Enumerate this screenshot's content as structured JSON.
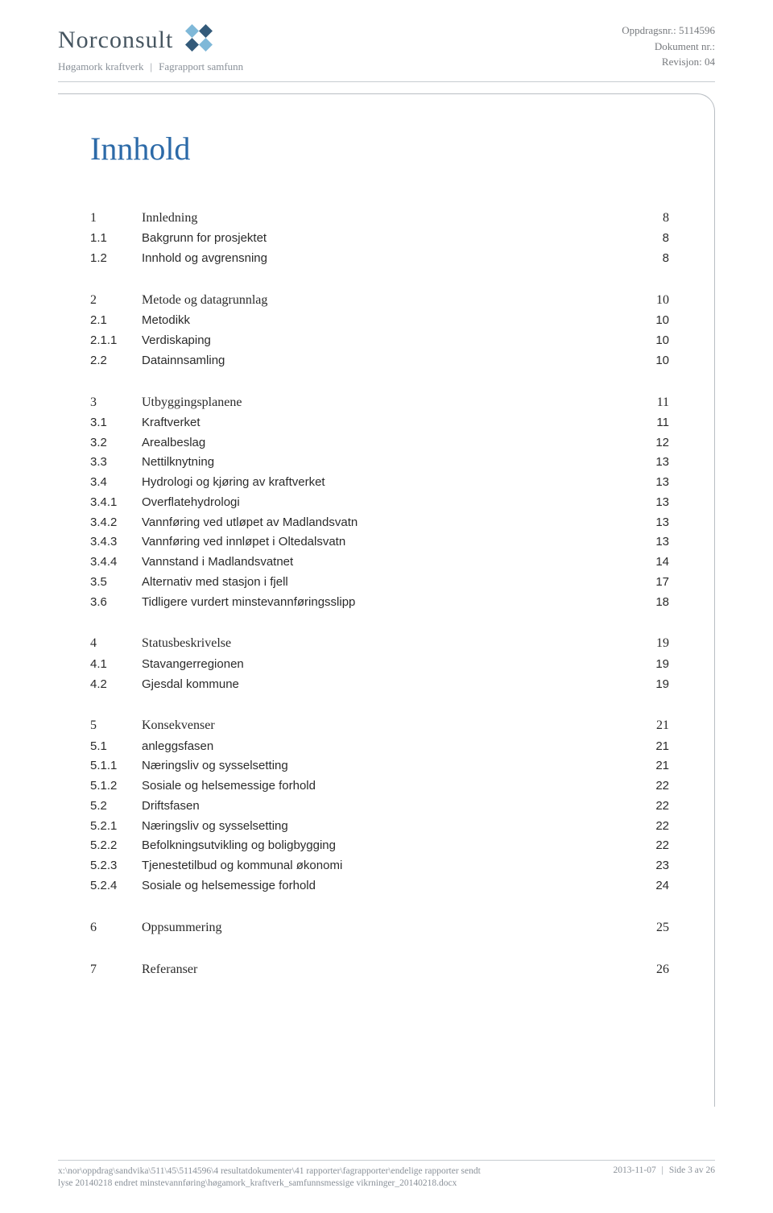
{
  "header": {
    "logo_text": "Norconsult",
    "logo_colors": {
      "dark": "#335a7a",
      "light": "#7fb8d8"
    },
    "sub_left": "Høgamork kraftverk",
    "sub_right": "Fagrapport samfunn",
    "meta": {
      "line1_label": "Oppdragsnr.:",
      "line1_value": "5114596",
      "line2_label": "Dokument nr.:",
      "line2_value": "",
      "line3_label": "Revisjon:",
      "line3_value": "04"
    }
  },
  "title": "Innhold",
  "toc": [
    {
      "entries": [
        {
          "level": 1,
          "num": "1",
          "label": "Innledning",
          "page": "8"
        },
        {
          "level": 2,
          "num": "1.1",
          "label": "Bakgrunn for prosjektet",
          "page": "8"
        },
        {
          "level": 2,
          "num": "1.2",
          "label": "Innhold og avgrensning",
          "page": "8"
        }
      ]
    },
    {
      "entries": [
        {
          "level": 1,
          "num": "2",
          "label": "Metode og datagrunnlag",
          "page": "10"
        },
        {
          "level": 2,
          "num": "2.1",
          "label": "Metodikk",
          "page": "10"
        },
        {
          "level": 3,
          "num": "2.1.1",
          "label": "Verdiskaping",
          "page": "10"
        },
        {
          "level": 2,
          "num": "2.2",
          "label": "Datainnsamling",
          "page": "10"
        }
      ]
    },
    {
      "entries": [
        {
          "level": 1,
          "num": "3",
          "label": "Utbyggingsplanene",
          "page": "11"
        },
        {
          "level": 2,
          "num": "3.1",
          "label": "Kraftverket",
          "page": "11"
        },
        {
          "level": 2,
          "num": "3.2",
          "label": "Arealbeslag",
          "page": "12"
        },
        {
          "level": 2,
          "num": "3.3",
          "label": "Nettilknytning",
          "page": "13"
        },
        {
          "level": 2,
          "num": "3.4",
          "label": "Hydrologi og kjøring av kraftverket",
          "page": "13"
        },
        {
          "level": 3,
          "num": "3.4.1",
          "label": "Overflatehydrologi",
          "page": "13"
        },
        {
          "level": 3,
          "num": "3.4.2",
          "label": "Vannføring ved utløpet av Madlandsvatn",
          "page": "13"
        },
        {
          "level": 3,
          "num": "3.4.3",
          "label": "Vannføring ved innløpet i Oltedalsvatn",
          "page": "13"
        },
        {
          "level": 3,
          "num": "3.4.4",
          "label": "Vannstand i Madlandsvatnet",
          "page": "14"
        },
        {
          "level": 2,
          "num": "3.5",
          "label": "Alternativ med stasjon i fjell",
          "page": "17"
        },
        {
          "level": 2,
          "num": "3.6",
          "label": "Tidligere vurdert minstevannføringsslipp",
          "page": "18"
        }
      ]
    },
    {
      "entries": [
        {
          "level": 1,
          "num": "4",
          "label": "Statusbeskrivelse",
          "page": "19"
        },
        {
          "level": 2,
          "num": "4.1",
          "label": "Stavangerregionen",
          "page": "19"
        },
        {
          "level": 2,
          "num": "4.2",
          "label": "Gjesdal kommune",
          "page": "19"
        }
      ]
    },
    {
      "entries": [
        {
          "level": 1,
          "num": "5",
          "label": "Konsekvenser",
          "page": "21"
        },
        {
          "level": 2,
          "num": "5.1",
          "label": "anleggsfasen",
          "page": "21"
        },
        {
          "level": 3,
          "num": "5.1.1",
          "label": "Næringsliv og sysselsetting",
          "page": "21"
        },
        {
          "level": 3,
          "num": "5.1.2",
          "label": "Sosiale og helsemessige forhold",
          "page": "22"
        },
        {
          "level": 2,
          "num": "5.2",
          "label": "Driftsfasen",
          "page": "22"
        },
        {
          "level": 3,
          "num": "5.2.1",
          "label": "Næringsliv og sysselsetting",
          "page": "22"
        },
        {
          "level": 3,
          "num": "5.2.2",
          "label": "Befolkningsutvikling og boligbygging",
          "page": "22"
        },
        {
          "level": 3,
          "num": "5.2.3",
          "label": "Tjenestetilbud og kommunal økonomi",
          "page": "23"
        },
        {
          "level": 3,
          "num": "5.2.4",
          "label": "Sosiale og helsemessige forhold",
          "page": "24"
        }
      ]
    },
    {
      "entries": [
        {
          "level": 1,
          "num": "6",
          "label": "Oppsummering",
          "page": "25"
        }
      ]
    },
    {
      "entries": [
        {
          "level": 1,
          "num": "7",
          "label": "Referanser",
          "page": "26"
        }
      ]
    }
  ],
  "footer": {
    "path_line1": "x:\\nor\\oppdrag\\sandvika\\511\\45\\5114596\\4 resultatdokumenter\\41 rapporter\\fagrapporter\\endelige rapporter sendt",
    "path_line2": "lyse 20140218 endret minstevannføring\\høgamork_kraftverk_samfunnsmessige vikrninger_20140218.docx",
    "date": "2013-11-07",
    "page_label": "Side",
    "page_cur": "3",
    "page_of": "av",
    "page_total": "26"
  }
}
